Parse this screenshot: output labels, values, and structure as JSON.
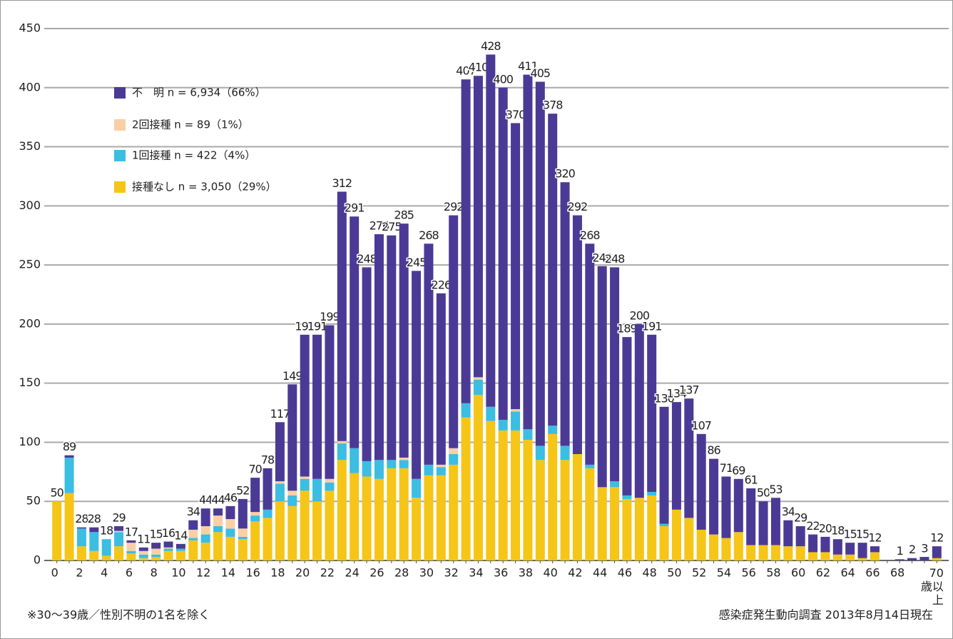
{
  "chart_data": {
    "type": "stacked_bar",
    "categories": [
      "0",
      null,
      "2",
      null,
      "4",
      null,
      "6",
      null,
      "8",
      null,
      "10",
      null,
      "12",
      null,
      "14",
      null,
      "16",
      null,
      "18",
      null,
      "20",
      null,
      "22",
      null,
      "24",
      null,
      "26",
      null,
      "28",
      null,
      "30",
      null,
      "32",
      null,
      "34",
      null,
      "36",
      null,
      "38",
      null,
      "40",
      null,
      "42",
      null,
      "44",
      null,
      "46",
      null,
      "48",
      null,
      "50",
      null,
      "52",
      null,
      "54",
      null,
      "56",
      null,
      "58",
      null,
      "60",
      null,
      "62",
      null,
      "64",
      null,
      "66",
      null,
      "68",
      null,
      "70歳以上",
      null
    ],
    "series": [
      {
        "name": "接種なし n = 3,050（29%）",
        "color": "#f5c518",
        "values": [
          50,
          57,
          12,
          8,
          4,
          12,
          6,
          2,
          3,
          8,
          8,
          17,
          15,
          24,
          20,
          18,
          33,
          36,
          50,
          46,
          59,
          50,
          59,
          85,
          74,
          71,
          69,
          78,
          78,
          53,
          72,
          72,
          81,
          121,
          140,
          118,
          110,
          110,
          102,
          85,
          107,
          85,
          90,
          78,
          62,
          62,
          52,
          53,
          55,
          29,
          43,
          36,
          26,
          22,
          19,
          24,
          13,
          13,
          13,
          12,
          12,
          7,
          7,
          5,
          5,
          2,
          7,
          0,
          0,
          0,
          0,
          2
        ]
      },
      {
        "name": "1回接種 n = 422（4%）",
        "color": "#3cbde2",
        "values": [
          0,
          30,
          15,
          16,
          14,
          12,
          2,
          3,
          2,
          2,
          2,
          2,
          7,
          5,
          7,
          2,
          5,
          7,
          15,
          9,
          10,
          19,
          7,
          14,
          21,
          13,
          16,
          7,
          7,
          16,
          9,
          7,
          9,
          12,
          13,
          12,
          9,
          16,
          9,
          12,
          7,
          12,
          0,
          3,
          0,
          5,
          3,
          0,
          3,
          2,
          0,
          0,
          0,
          0,
          0,
          0,
          0,
          0,
          0,
          0,
          0,
          0,
          0,
          0,
          0,
          0,
          0,
          0,
          0,
          0,
          0,
          0
        ]
      },
      {
        "name": "2回接種 n = 89（1%）",
        "color": "#f9cfa6",
        "values": [
          0,
          0,
          0,
          0,
          0,
          1,
          7,
          3,
          5,
          1,
          0,
          7,
          7,
          9,
          8,
          7,
          3,
          0,
          2,
          4,
          2,
          0,
          3,
          2,
          0,
          0,
          0,
          0,
          2,
          0,
          0,
          2,
          5,
          0,
          2,
          0,
          0,
          2,
          0,
          0,
          0,
          0,
          0,
          0,
          0,
          0,
          0,
          0,
          0,
          0,
          0,
          0,
          0,
          0,
          0,
          0,
          0,
          0,
          0,
          0,
          0,
          0,
          0,
          0,
          0,
          0,
          0,
          0,
          0,
          0,
          0,
          0
        ]
      },
      {
        "name": "不　明 n = 6,934（66%）",
        "color": "#4b3a95",
        "values": [
          0,
          2,
          1,
          4,
          0,
          4,
          2,
          3,
          5,
          5,
          4,
          8,
          15,
          6,
          11,
          25,
          29,
          35,
          50,
          90,
          120,
          122,
          130,
          211,
          196,
          164,
          191,
          190,
          198,
          176,
          187,
          145,
          197,
          274,
          255,
          298,
          281,
          242,
          300,
          308,
          264,
          223,
          202,
          187,
          187,
          181,
          134,
          147,
          133,
          99,
          91,
          101,
          81,
          64,
          52,
          45,
          48,
          37,
          40,
          22,
          17,
          15,
          13,
          13,
          10,
          13,
          5,
          0,
          1,
          2,
          3,
          10
        ]
      }
    ],
    "totals": [
      50,
      89,
      28,
      28,
      18,
      29,
      17,
      11,
      15,
      16,
      14,
      34,
      44,
      44,
      46,
      52,
      70,
      78,
      117,
      149,
      191,
      191,
      199,
      312,
      291,
      248,
      276,
      275,
      285,
      245,
      268,
      226,
      292,
      407,
      410,
      428,
      400,
      370,
      411,
      405,
      378,
      320,
      292,
      268,
      249,
      248,
      189,
      200,
      191,
      130,
      134,
      137,
      107,
      86,
      71,
      69,
      61,
      50,
      53,
      34,
      29,
      22,
      20,
      18,
      15,
      15,
      12,
      null,
      1,
      2,
      3,
      12
    ],
    "ylim": [
      0,
      450
    ],
    "yticks": [
      0,
      50,
      100,
      150,
      200,
      250,
      300,
      350,
      400,
      450
    ],
    "grid": true,
    "legend": "upper left",
    "footnote": "※30～39歳／性別不明の1名を除く",
    "source": "感染症発生動向調査 2013年8月14日現在"
  }
}
